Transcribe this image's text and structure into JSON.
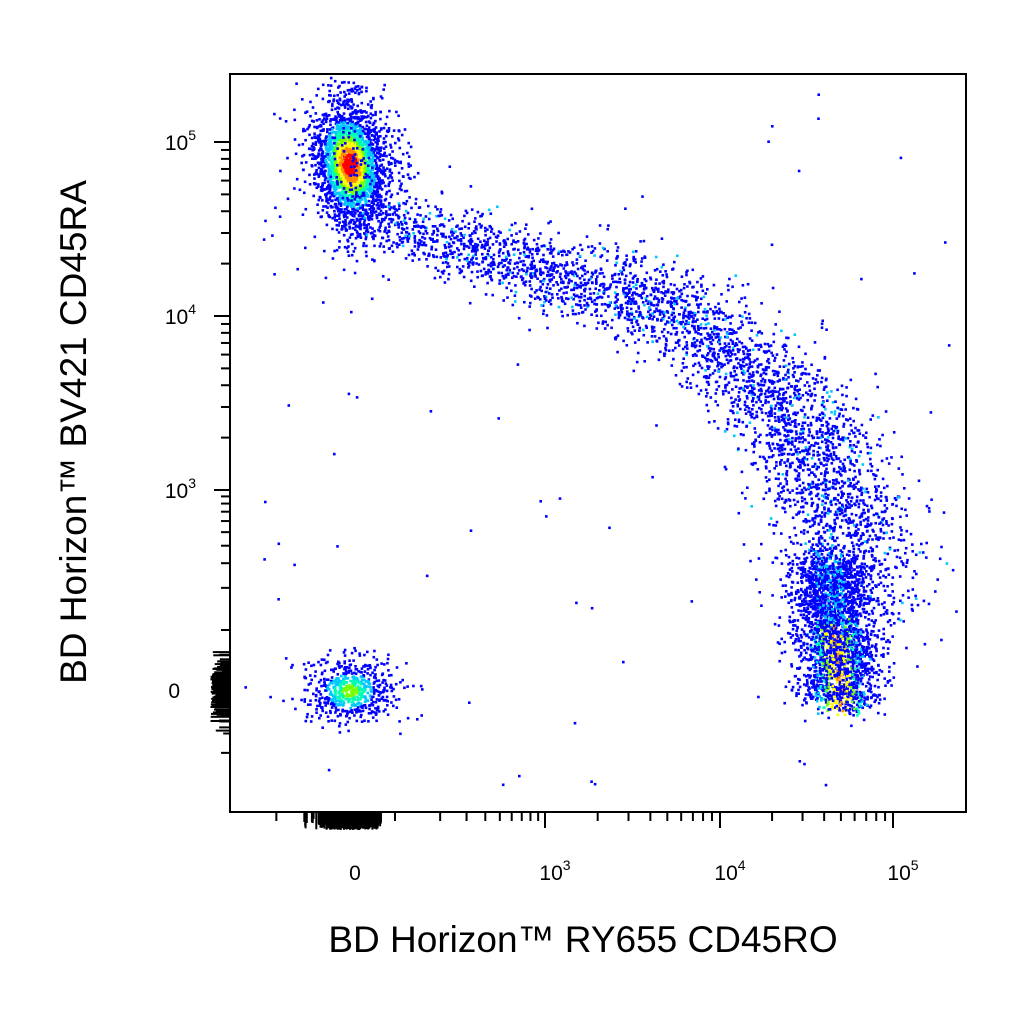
{
  "chart_data": {
    "type": "scatter",
    "subtype": "flow-cytometry-density-dot-plot",
    "title": "",
    "xlabel": "BD Horizon™ RY655 CD45RO",
    "ylabel": "BD Horizon™ BV421 CD45RA",
    "x_scale": "biexponential",
    "y_scale": "biexponential",
    "xlim": [
      -300,
      150000
    ],
    "ylim": [
      -350,
      200000
    ],
    "x_ticks": [
      {
        "base": "0",
        "exp": "",
        "value": 0
      },
      {
        "base": "10",
        "exp": "3",
        "value": 1000
      },
      {
        "base": "10",
        "exp": "4",
        "value": 10000
      },
      {
        "base": "10",
        "exp": "5",
        "value": 100000
      }
    ],
    "y_ticks": [
      {
        "base": "0",
        "exp": "",
        "value": 0
      },
      {
        "base": "10",
        "exp": "3",
        "value": 1000
      },
      {
        "base": "10",
        "exp": "4",
        "value": 10000
      },
      {
        "base": "10",
        "exp": "5",
        "value": 100000
      }
    ],
    "grid": false,
    "legend": "none",
    "density_colors": [
      "#0000ff",
      "#00c8ff",
      "#00ffb4",
      "#78ff00",
      "#ffff00",
      "#ff8c00",
      "#ff0000"
    ],
    "populations": [
      {
        "x_center": 0,
        "y_center": 75000,
        "count": 2300,
        "peak_density": 1.0
      },
      {
        "x_center": 2500,
        "y_center": 20000,
        "count": 3600,
        "peak_density": 0.28
      },
      {
        "x_center": 50000,
        "y_center": 800,
        "count": 2400,
        "peak_density": 0.45
      },
      {
        "x_center": 0,
        "y_center": 0,
        "count": 600,
        "peak_density": 0.5
      }
    ]
  }
}
